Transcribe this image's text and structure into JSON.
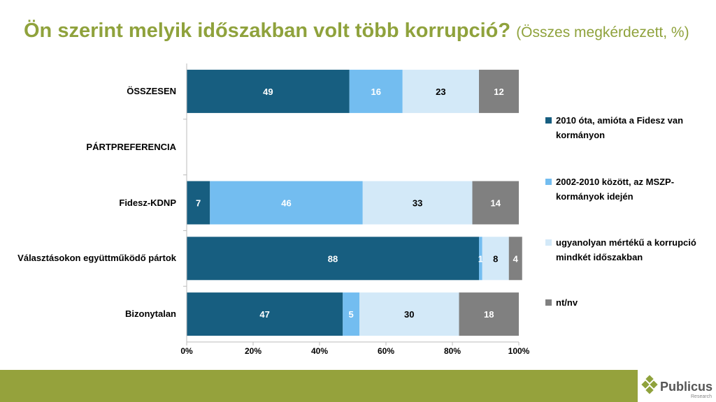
{
  "title": "Ön szerint melyik időszakban volt több korrupció?",
  "subtitle": "(Összes megkérdezett, %)",
  "logo": {
    "name": "Publicus",
    "tagline": "Research"
  },
  "colors": {
    "title": "#8FA23C",
    "footer": "#95A23C"
  },
  "chart_data": {
    "type": "bar",
    "orientation": "horizontal",
    "stacked": "percent",
    "categories": [
      "ÖSSZESEN",
      "PÁRTPREFERENCIA",
      "Fidesz-KDNP",
      "Választásokon együttműködő pártok",
      "Bizonytalan"
    ],
    "series": [
      {
        "name": "2010 óta, amióta a Fidesz van kormányon",
        "color": "#175E80",
        "label_color": "#ffffff",
        "values": [
          49,
          null,
          7,
          88,
          47
        ]
      },
      {
        "name": "2002-2010 között, az MSZP-kormányok idején",
        "color": "#73BDF0",
        "label_color": "#ffffff",
        "values": [
          16,
          null,
          46,
          1,
          5
        ]
      },
      {
        "name": "ugyanolyan mértékű a korrupció mindkét időszakban",
        "color": "#D3E9F8",
        "label_color": "#000000",
        "values": [
          23,
          null,
          33,
          8,
          30
        ]
      },
      {
        "name": "nt/nv",
        "color": "#808080",
        "label_color": "#ffffff",
        "values": [
          12,
          null,
          14,
          4,
          18
        ]
      }
    ],
    "xlim": [
      0,
      100
    ],
    "xticks": [
      "0%",
      "20%",
      "40%",
      "60%",
      "80%",
      "100%"
    ],
    "legend_position": "right",
    "grid": false
  }
}
